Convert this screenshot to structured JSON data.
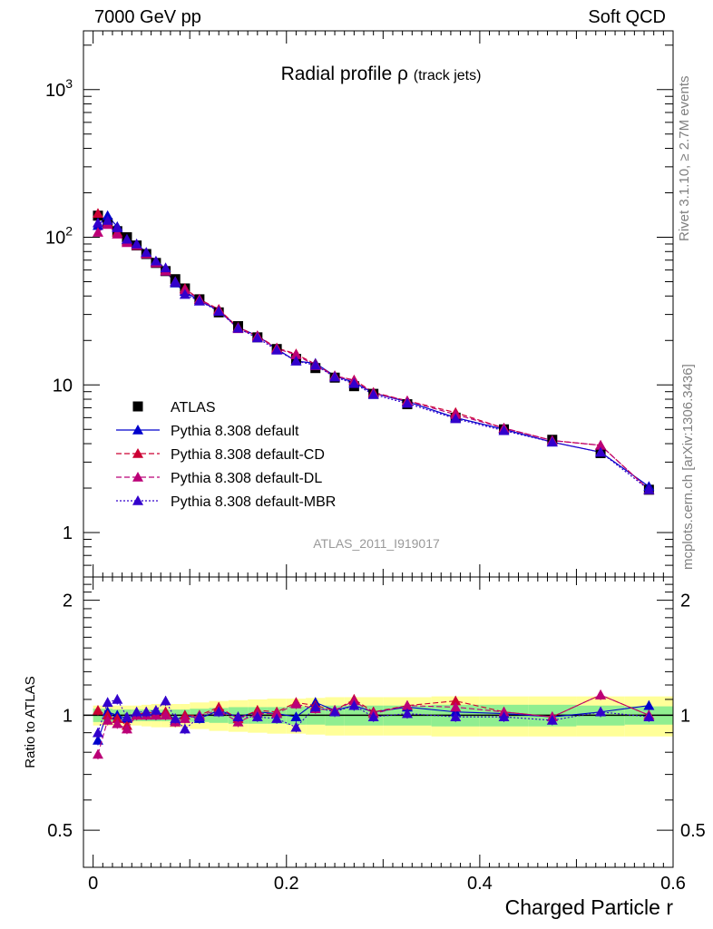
{
  "header": {
    "left": "7000 GeV pp",
    "right": "Soft QCD"
  },
  "side_labels": {
    "top": "Rivet 3.1.10, ≥ 2.7M events",
    "bottom": "mcplots.cern.ch [arXiv:1306.3436]"
  },
  "chart_data": [
    {
      "type": "scatter",
      "title": "Radial profile ρ",
      "title_suffix": "(track jets)",
      "watermark": "ATLAS_2011_I919017",
      "xlabel": "Charged Particle r",
      "ylabel": "",
      "xlim": [
        -0.01,
        0.6
      ],
      "ylim": [
        0.5,
        2500
      ],
      "log_y": true,
      "y_tick_labels": [
        "1",
        "10",
        "10^2",
        "10^3"
      ],
      "x": [
        0.005,
        0.015,
        0.025,
        0.035,
        0.045,
        0.055,
        0.065,
        0.075,
        0.085,
        0.095,
        0.11,
        0.13,
        0.15,
        0.17,
        0.19,
        0.21,
        0.23,
        0.25,
        0.27,
        0.29,
        0.325,
        0.375,
        0.425,
        0.475,
        0.525,
        0.575
      ],
      "legend_position": "lower-left",
      "series": [
        {
          "name": "ATLAS",
          "color": "#000000",
          "marker": "square",
          "line": "none",
          "values": [
            140,
            125,
            110,
            100,
            88,
            77,
            67,
            59,
            52,
            45,
            38,
            31,
            25,
            21,
            17.5,
            15,
            13,
            11.2,
            9.8,
            8.7,
            7.4,
            6.0,
            5.0,
            4.25,
            3.45,
            1.95
          ]
        },
        {
          "name": "Pythia 8.308 default",
          "color": "#0000cc",
          "marker": "triangle",
          "line": "solid",
          "values": [
            120,
            140,
            118,
            96,
            90,
            78,
            68,
            59,
            49,
            43,
            37,
            32,
            24.5,
            21.5,
            17.5,
            14.5,
            14,
            11.5,
            10.4,
            8.8,
            7.7,
            6.0,
            5.0,
            4.1,
            3.5,
            2.05
          ]
        },
        {
          "name": "Pythia 8.308 default-CD",
          "color": "#cc0033",
          "marker": "triangle",
          "line": "dashed",
          "values": [
            145,
            125,
            108,
            94,
            88,
            78,
            68,
            60,
            50,
            45,
            38,
            32.5,
            24.5,
            21.5,
            17.8,
            16.2,
            13.8,
            11.5,
            10.8,
            8.9,
            7.8,
            6.5,
            5.1,
            4.2,
            3.9,
            1.95
          ]
        },
        {
          "name": "Pythia 8.308 default-DL",
          "color": "#bb0077",
          "marker": "triangle",
          "line": "dashed",
          "values": [
            108,
            122,
            105,
            92,
            88,
            77,
            67,
            59,
            50,
            44,
            38,
            32,
            24,
            21.3,
            17.6,
            16,
            13.5,
            11.5,
            10.7,
            8.8,
            7.8,
            6.3,
            5.1,
            4.2,
            3.9,
            1.95
          ]
        },
        {
          "name": "Pythia 8.308 default-MBR",
          "color": "#3300cc",
          "marker": "triangle",
          "line": "dotted",
          "values": [
            125,
            130,
            116,
            97,
            90,
            79,
            69,
            62,
            50,
            41,
            37,
            31.5,
            24.2,
            20.8,
            17.2,
            14.5,
            13.6,
            11.3,
            10.2,
            8.6,
            7.5,
            5.9,
            4.9,
            4.1,
            3.5,
            1.95
          ]
        }
      ]
    },
    {
      "type": "scatter",
      "xlabel": "Charged Particle r",
      "ylabel": "Ratio to ATLAS",
      "xlim": [
        -0.01,
        0.6
      ],
      "ylim": [
        0.4,
        2.3
      ],
      "log_y": true,
      "x_ticks": [
        0,
        0.2,
        0.4,
        0.6
      ],
      "x_tick_labels": [
        "0",
        "0.2",
        "0.4",
        "0.6"
      ],
      "y_tick_labels": [
        "0.5",
        "1",
        "2"
      ],
      "reference_line": 1,
      "bins": [
        0,
        0.01,
        0.02,
        0.03,
        0.04,
        0.05,
        0.06,
        0.07,
        0.08,
        0.09,
        0.1,
        0.12,
        0.14,
        0.16,
        0.18,
        0.2,
        0.22,
        0.24,
        0.26,
        0.28,
        0.3,
        0.35,
        0.4,
        0.45,
        0.5,
        0.55,
        0.6
      ],
      "bands": {
        "inner_color": "#90ee90",
        "outer_color": "#ffff99",
        "inner_lower": [
          0.96,
          0.96,
          0.965,
          0.965,
          0.965,
          0.965,
          0.965,
          0.965,
          0.965,
          0.965,
          0.96,
          0.955,
          0.95,
          0.95,
          0.95,
          0.945,
          0.945,
          0.94,
          0.94,
          0.94,
          0.94,
          0.935,
          0.935,
          0.935,
          0.94,
          0.945
        ],
        "inner_upper": [
          1.04,
          1.04,
          1.035,
          1.035,
          1.035,
          1.035,
          1.035,
          1.035,
          1.035,
          1.035,
          1.04,
          1.045,
          1.05,
          1.05,
          1.05,
          1.055,
          1.055,
          1.06,
          1.06,
          1.06,
          1.06,
          1.065,
          1.065,
          1.065,
          1.06,
          1.055
        ],
        "outer_lower": [
          0.94,
          0.94,
          0.94,
          0.94,
          0.94,
          0.935,
          0.93,
          0.93,
          0.93,
          0.93,
          0.92,
          0.91,
          0.905,
          0.9,
          0.895,
          0.895,
          0.89,
          0.885,
          0.885,
          0.885,
          0.885,
          0.88,
          0.88,
          0.88,
          0.88,
          0.88
        ],
        "outer_upper": [
          1.06,
          1.06,
          1.06,
          1.06,
          1.06,
          1.065,
          1.07,
          1.07,
          1.07,
          1.07,
          1.08,
          1.09,
          1.095,
          1.1,
          1.105,
          1.105,
          1.11,
          1.115,
          1.115,
          1.115,
          1.115,
          1.12,
          1.12,
          1.12,
          1.12,
          1.12
        ]
      },
      "series": [
        {
          "name": "Pythia 8.308 default",
          "color": "#0000cc",
          "marker": "triangle",
          "line": "solid",
          "values": [
            0.86,
            1.02,
            1.0,
            0.98,
            1.01,
            1.0,
            1.0,
            1.02,
            0.97,
            1.0,
            0.98,
            1.03,
            0.99,
            1.02,
            1.01,
            0.99,
            1.08,
            1.03,
            1.06,
            1.02,
            1.05,
            1.02,
            1.01,
            0.99,
            1.02,
            1.06
          ]
        },
        {
          "name": "Pythia 8.308 default-CD",
          "color": "#cc0033",
          "marker": "triangle",
          "line": "dashed",
          "values": [
            1.03,
            1.0,
            0.98,
            0.94,
            1.0,
            1.02,
            1.01,
            1.02,
            0.96,
            1.0,
            1.0,
            1.05,
            0.98,
            1.03,
            1.02,
            1.08,
            1.06,
            1.03,
            1.1,
            1.02,
            1.06,
            1.09,
            1.02,
            0.99,
            1.13,
            1.0
          ]
        },
        {
          "name": "Pythia 8.308 default-DL",
          "color": "#bb0077",
          "marker": "triangle",
          "line": "dashed",
          "values": [
            0.79,
            0.97,
            0.95,
            0.92,
            1.0,
            1.0,
            1.0,
            1.0,
            0.96,
            0.98,
            1.0,
            1.03,
            0.96,
            1.01,
            1.01,
            1.07,
            1.04,
            1.03,
            1.09,
            1.01,
            1.06,
            1.05,
            1.02,
            0.99,
            1.13,
            1.0
          ]
        },
        {
          "name": "Pythia 8.308 default-MBR",
          "color": "#3300cc",
          "marker": "triangle",
          "line": "dotted",
          "values": [
            0.9,
            1.08,
            1.1,
            0.99,
            1.02,
            1.02,
            1.03,
            1.09,
            0.98,
            0.92,
            0.99,
            1.02,
            0.99,
            0.99,
            0.98,
            0.93,
            1.05,
            1.02,
            1.06,
            0.99,
            1.01,
            0.99,
            0.99,
            0.97,
            1.02,
            0.99
          ]
        }
      ]
    }
  ]
}
